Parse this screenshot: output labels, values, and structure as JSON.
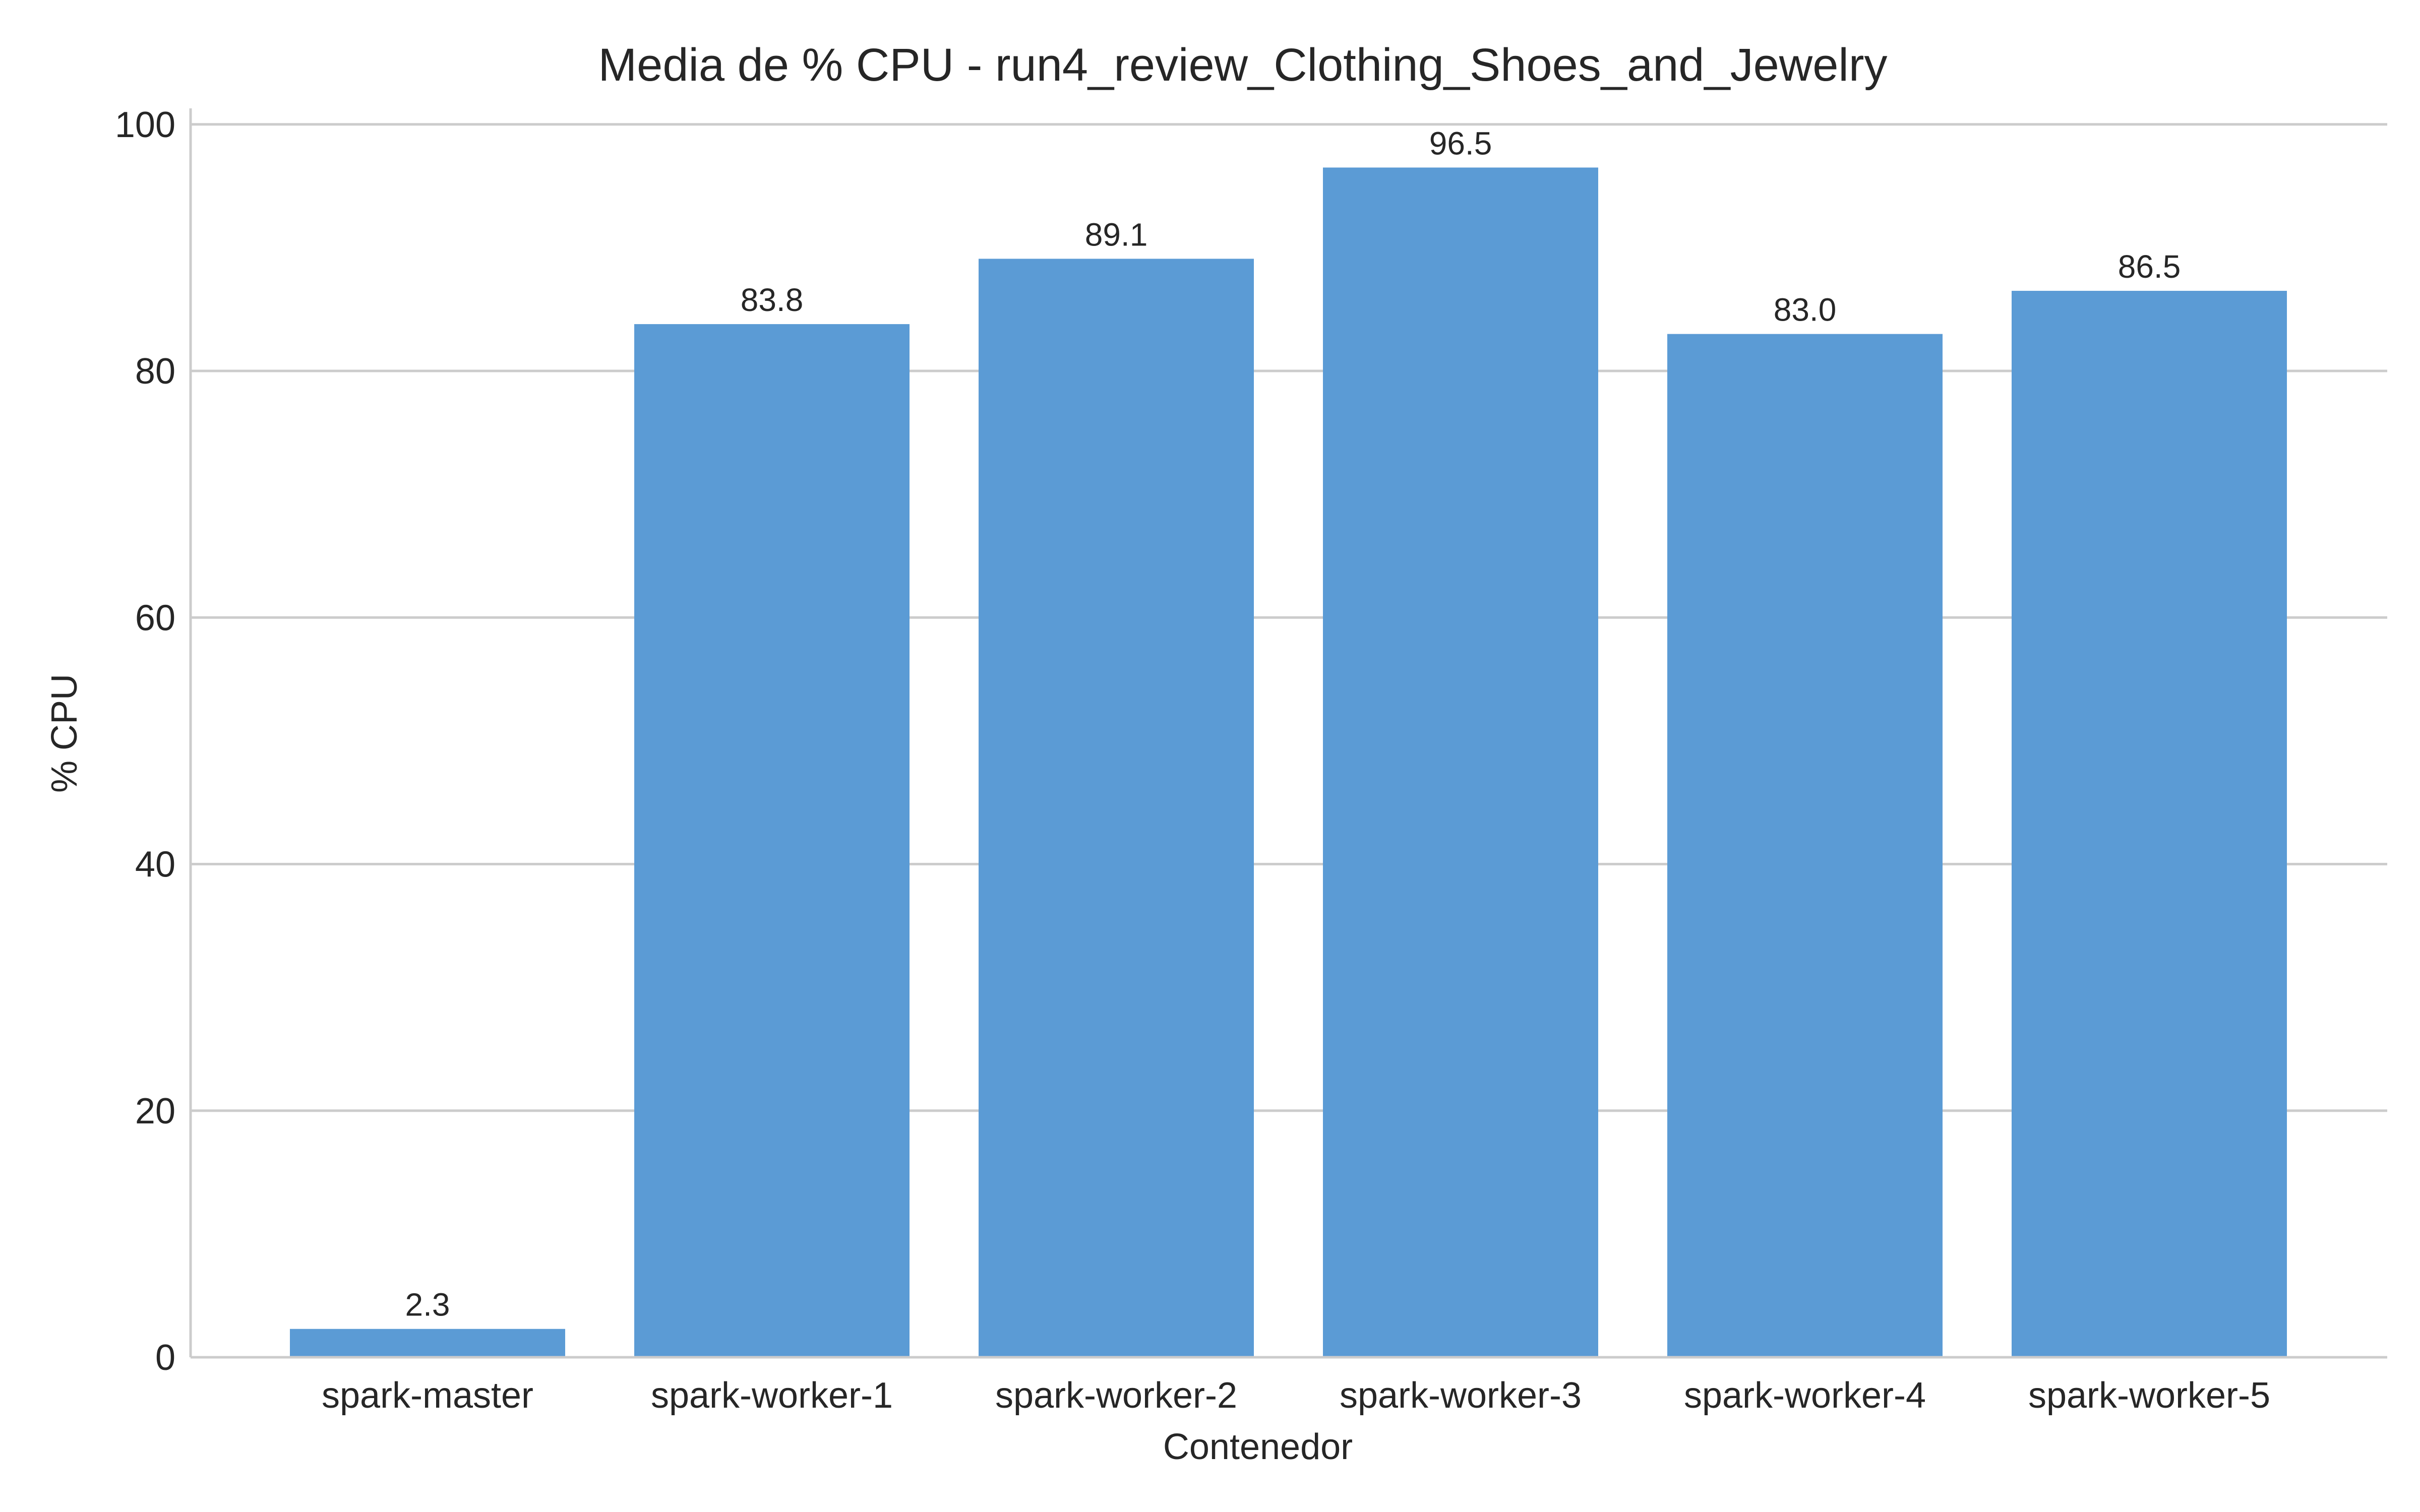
{
  "chart_data": {
    "type": "bar",
    "title": "Media de % CPU - run4_review_Clothing_Shoes_and_Jewelry",
    "xlabel": "Contenedor",
    "ylabel": "% CPU",
    "categories": [
      "spark-master",
      "spark-worker-1",
      "spark-worker-2",
      "spark-worker-3",
      "spark-worker-4",
      "spark-worker-5"
    ],
    "values": [
      2.3,
      83.8,
      89.1,
      96.5,
      83.0,
      86.5
    ],
    "value_labels": [
      "2.3",
      "83.8",
      "89.1",
      "96.5",
      "83.0",
      "86.5"
    ],
    "ylim": [
      0,
      101.3
    ],
    "yticks": [
      0,
      20,
      40,
      60,
      80,
      100
    ],
    "ytick_labels": [
      "0",
      "20",
      "40",
      "60",
      "80",
      "100"
    ],
    "grid": "horizontal",
    "colors": {
      "bar": "#5b9bd5",
      "grid": "#cccccc",
      "axis": "#cccccc",
      "text": "#262626"
    }
  }
}
